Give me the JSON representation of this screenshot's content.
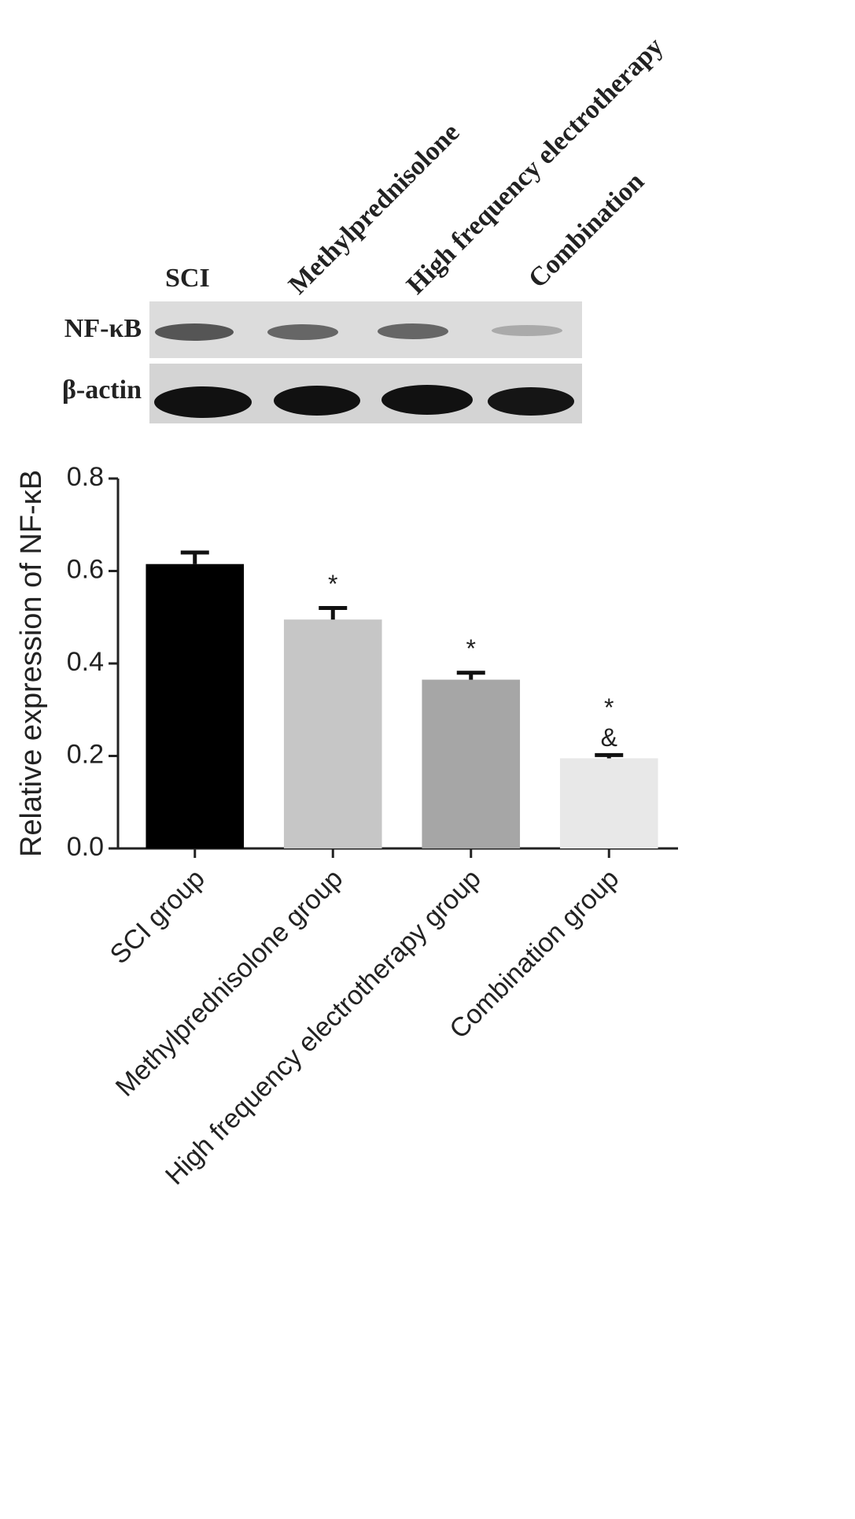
{
  "blot": {
    "lanes": [
      "SCI",
      "Methylprednisolone",
      "High frequency electrotherapy",
      "Combination"
    ],
    "rows": [
      "NF-κB",
      "β-actin"
    ]
  },
  "chart_data": {
    "type": "bar",
    "y_label": "Relative expression of NF-κB",
    "categories": [
      "SCI group",
      "Methylprednisolone group",
      "High frequency electrotherapy group",
      "Combination group"
    ],
    "values": [
      0.615,
      0.495,
      0.365,
      0.195
    ],
    "errors": [
      0.025,
      0.025,
      0.015,
      0.007
    ],
    "colors": [
      "#000000",
      "#c6c6c6",
      "#a6a6a6",
      "#e8e8e8"
    ],
    "annotations": [
      null,
      [
        "*"
      ],
      [
        "*"
      ],
      [
        "*",
        "&"
      ]
    ],
    "ylim": [
      0,
      0.8
    ],
    "yticks": [
      {
        "value": 0,
        "label": "0.0"
      },
      0.2,
      0.4,
      0.6,
      0.8
    ]
  }
}
